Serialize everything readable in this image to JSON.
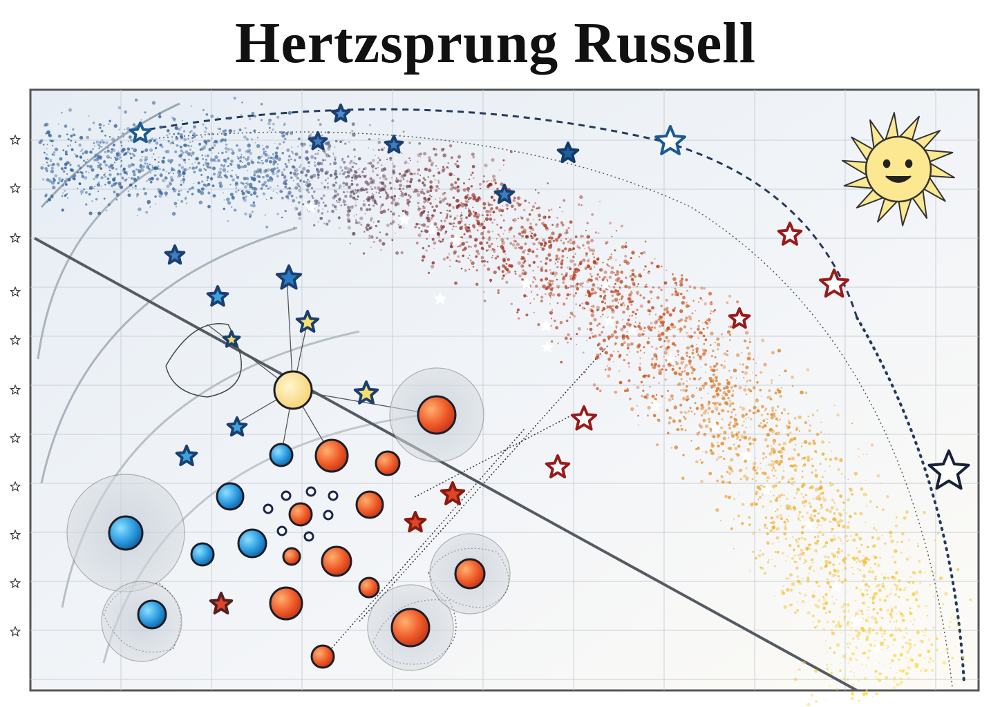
{
  "title": "Hertzsprung Russell"
}
